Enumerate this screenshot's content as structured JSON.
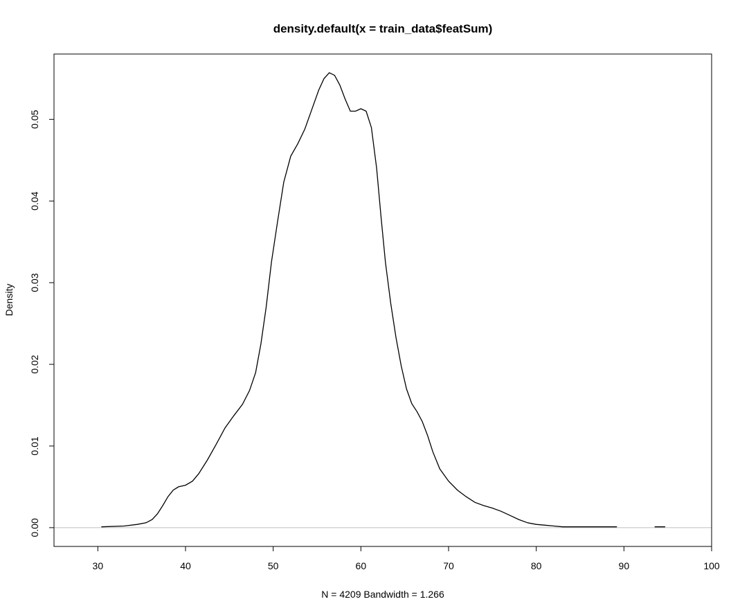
{
  "chart_data": {
    "type": "line",
    "title": "density.default(x = train_data$featSum)",
    "xlabel": "N = 4209   Bandwidth = 1.266",
    "ylabel": "Density",
    "xlim": [
      25,
      100
    ],
    "ylim": [
      -0.0023,
      0.058
    ],
    "x_ticks": [
      "30",
      "40",
      "50",
      "60",
      "70",
      "80",
      "90",
      "100"
    ],
    "y_ticks": [
      "0.00",
      "0.01",
      "0.02",
      "0.03",
      "0.04",
      "0.05"
    ],
    "baseline": 0,
    "colors": {
      "line": "#000000",
      "baseline": "#bebebe",
      "box": "#000000"
    },
    "series": [
      {
        "x": [
          30.4,
          33.0,
          34.5,
          35.5,
          36.2,
          36.8,
          37.4,
          38.0,
          38.6,
          39.2,
          40.0,
          40.8,
          41.5,
          42.5,
          43.5,
          44.5,
          45.5,
          46.5,
          47.3,
          48.0,
          48.6,
          49.2,
          49.8,
          50.5,
          51.2,
          52.0,
          52.8,
          53.6,
          54.4,
          55.2,
          55.8,
          56.4,
          57.0,
          57.6,
          58.2,
          58.8,
          59.4,
          60.0,
          60.6,
          61.2,
          61.8,
          62.3,
          62.8,
          63.4,
          64.0,
          64.6,
          65.2,
          65.8,
          66.4,
          67.0,
          67.6,
          68.2,
          69.0,
          70.0,
          71.0,
          72.0,
          73.0,
          74.0,
          75.0,
          76.0,
          77.0,
          78.0,
          79.0,
          80.0,
          81.0,
          82.0,
          83.0,
          84.0,
          85.0,
          86.0,
          87.0,
          88.0,
          89.2,
          null,
          93.5,
          94.7
        ],
        "y": [
          0.0001,
          0.0002,
          0.0004,
          0.0006,
          0.001,
          0.0017,
          0.0027,
          0.0038,
          0.0046,
          0.005,
          0.0052,
          0.0057,
          0.0066,
          0.0083,
          0.0102,
          0.0122,
          0.0137,
          0.0151,
          0.0168,
          0.019,
          0.0225,
          0.027,
          0.0325,
          0.0375,
          0.0423,
          0.0455,
          0.047,
          0.0488,
          0.0512,
          0.0536,
          0.055,
          0.0557,
          0.0554,
          0.0542,
          0.0525,
          0.051,
          0.051,
          0.0513,
          0.051,
          0.049,
          0.044,
          0.038,
          0.0325,
          0.0275,
          0.0233,
          0.0198,
          0.017,
          0.0152,
          0.0142,
          0.013,
          0.0113,
          0.0093,
          0.0072,
          0.0057,
          0.0046,
          0.0038,
          0.0031,
          0.0027,
          0.0024,
          0.002,
          0.0015,
          0.001,
          0.0006,
          0.0004,
          0.0003,
          0.0002,
          0.0001,
          0.0001,
          0.0001,
          0.0001,
          0.0001,
          0.0001,
          0.0001,
          null,
          0.0001,
          0.0001
        ]
      }
    ]
  }
}
